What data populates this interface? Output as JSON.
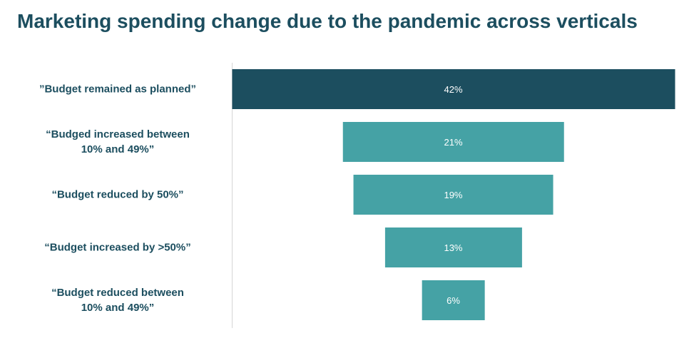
{
  "chart_data": {
    "type": "bar",
    "title": "Marketing spending change due to the pandemic across verticals",
    "categories": [
      "”Budget remained as planned”",
      "“Budged increased between\n10% and 49%”",
      "“Budget reduced by 50%”",
      "“Budget increased by >50%”",
      "“Budget reduced between\n10% and 49%”"
    ],
    "values": [
      42,
      21,
      19,
      13,
      6
    ],
    "value_labels": [
      "42%",
      "21%",
      "19%",
      "13%",
      "6%"
    ],
    "unit": "%",
    "xlabel": "",
    "ylabel": "",
    "xlim": [
      0,
      42
    ],
    "grid": false,
    "legend": "none",
    "colors": {
      "highlight": "#1c4e5f",
      "default": "#45a2a5",
      "title": "#1c4e5f"
    }
  }
}
